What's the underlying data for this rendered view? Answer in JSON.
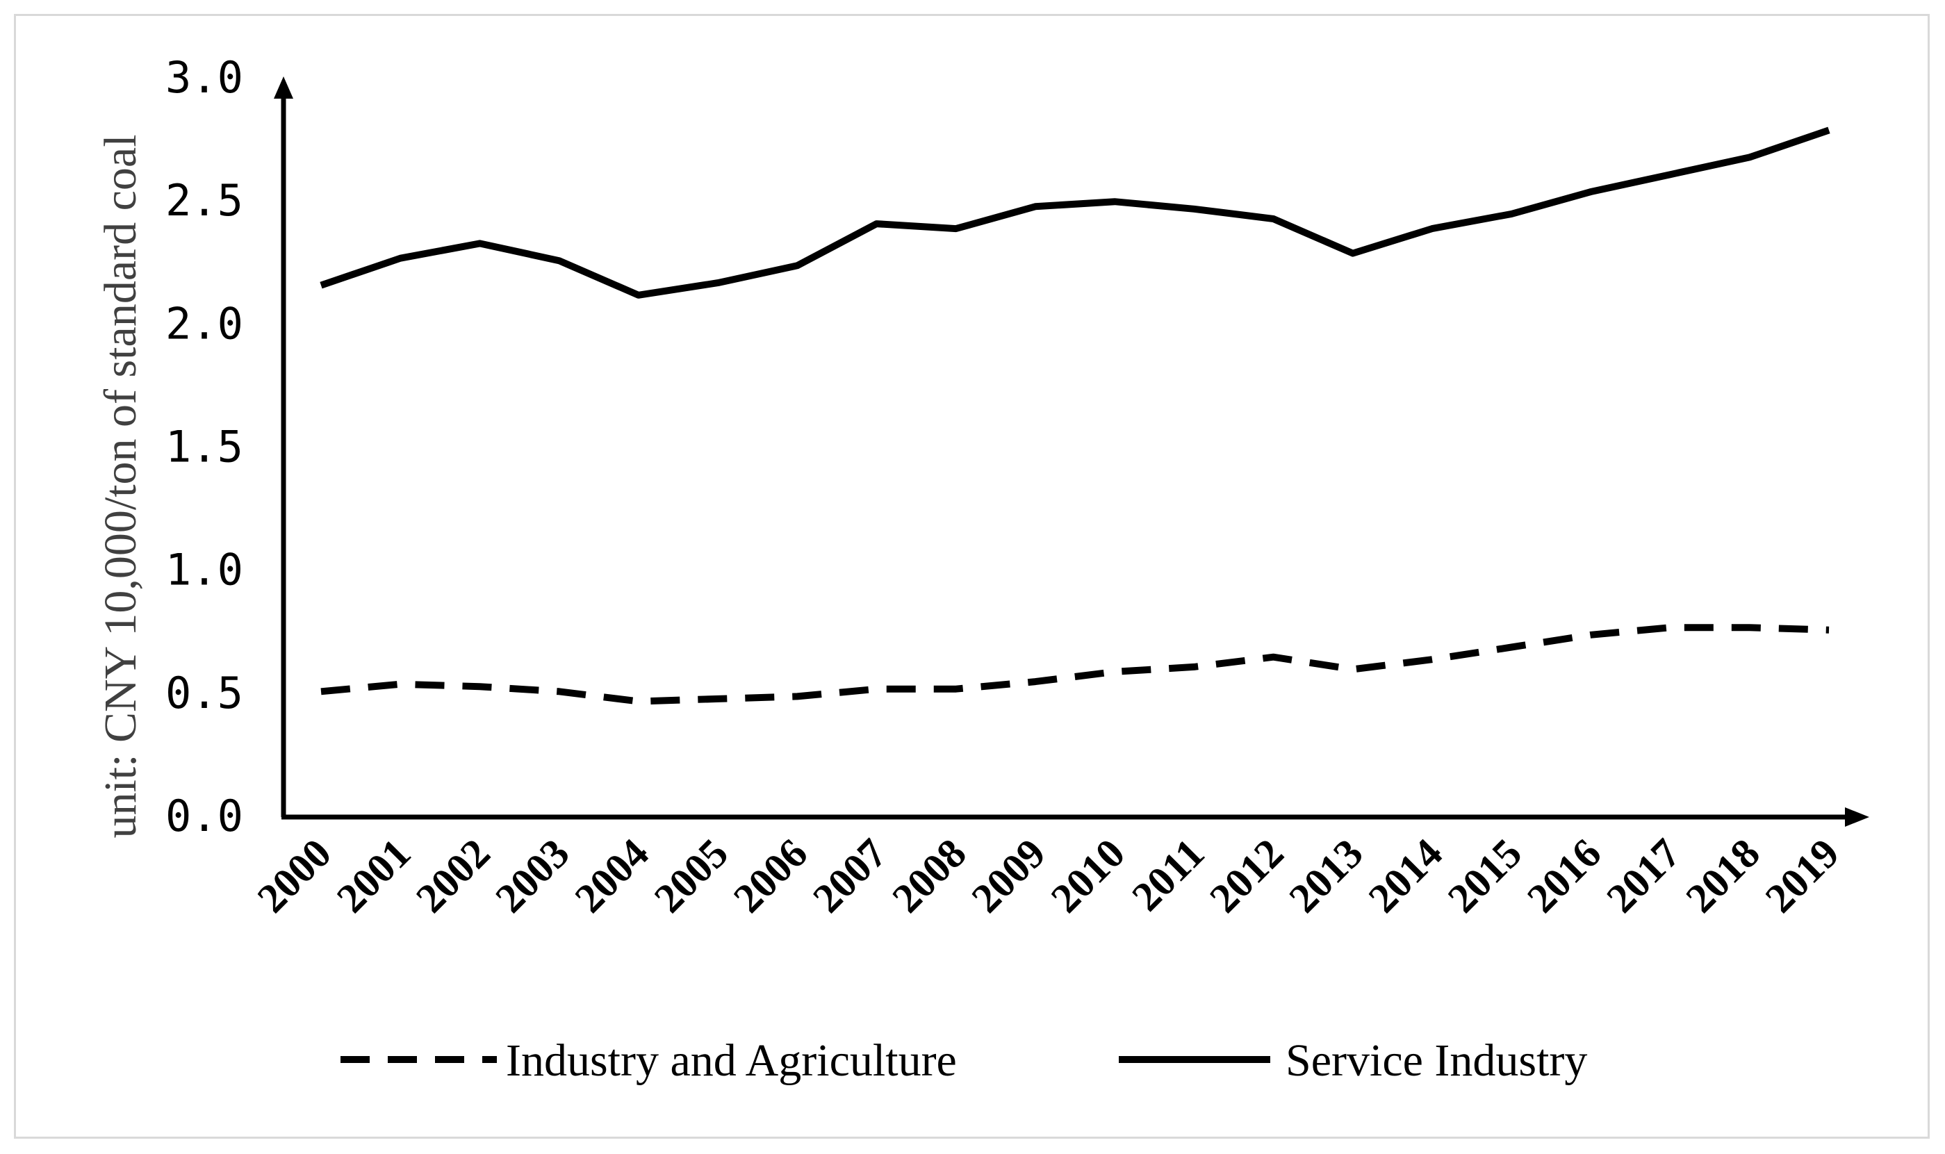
{
  "chart_data": {
    "type": "line",
    "title": "",
    "xlabel": "",
    "ylabel": "unit: CNY 10,000/ton of standard coal",
    "categories": [
      "2000",
      "2001",
      "2002",
      "2003",
      "2004",
      "2005",
      "2006",
      "2007",
      "2008",
      "2009",
      "2010",
      "2011",
      "2012",
      "2013",
      "2014",
      "2015",
      "2016",
      "2017",
      "2018",
      "2019"
    ],
    "ylim": [
      0,
      3.0
    ],
    "yticks": [
      "0.0",
      "0.5",
      "1.0",
      "1.5",
      "2.0",
      "2.5",
      "3.0"
    ],
    "grid": false,
    "legend_position": "bottom",
    "series": [
      {
        "name": "Industry and Agriculture",
        "style": "dashed",
        "color": "#000000",
        "values": [
          0.51,
          0.54,
          0.53,
          0.51,
          0.47,
          0.48,
          0.49,
          0.52,
          0.52,
          0.55,
          0.59,
          0.61,
          0.65,
          0.6,
          0.64,
          0.69,
          0.74,
          0.77,
          0.77,
          0.76
        ]
      },
      {
        "name": "Service Industry",
        "style": "solid",
        "color": "#000000",
        "values": [
          2.16,
          2.27,
          2.33,
          2.26,
          2.12,
          2.17,
          2.24,
          2.41,
          2.39,
          2.48,
          2.5,
          2.47,
          2.43,
          2.29,
          2.39,
          2.45,
          2.54,
          2.61,
          2.68,
          2.79
        ]
      }
    ]
  }
}
